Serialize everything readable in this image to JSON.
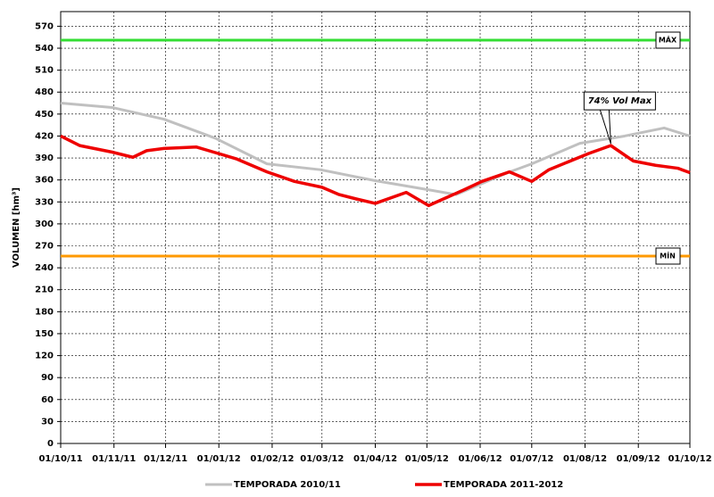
{
  "chart_data": {
    "type": "line",
    "y_label": "VOLUMEN [hm³]",
    "xlim": [
      0,
      366
    ],
    "xticks": [
      {
        "value": 0,
        "label": "01/10/11"
      },
      {
        "value": 31,
        "label": "01/11/11"
      },
      {
        "value": 61,
        "label": "01/12/11"
      },
      {
        "value": 92,
        "label": "01/01/12"
      },
      {
        "value": 123,
        "label": "01/02/12"
      },
      {
        "value": 152,
        "label": "01/03/12"
      },
      {
        "value": 183,
        "label": "01/04/12"
      },
      {
        "value": 213,
        "label": "01/05/12"
      },
      {
        "value": 244,
        "label": "01/06/12"
      },
      {
        "value": 274,
        "label": "01/07/12"
      },
      {
        "value": 305,
        "label": "01/08/12"
      },
      {
        "value": 336,
        "label": "01/09/12"
      },
      {
        "value": 366,
        "label": "01/10/12"
      }
    ],
    "ylim": [
      0,
      590
    ],
    "yticks": [
      0,
      30,
      60,
      90,
      120,
      150,
      180,
      210,
      240,
      270,
      300,
      330,
      360,
      390,
      420,
      450,
      480,
      510,
      540,
      570
    ],
    "grid": true,
    "series": [
      {
        "name": "TEMPORADA 2010/11",
        "color": "#c0c0c0",
        "x": [
          0,
          30,
          60,
          90,
          120,
          151,
          183,
          213,
          230,
          245,
          260,
          274,
          302,
          328,
          351,
          366
        ],
        "values": [
          465,
          459,
          443,
          417,
          382,
          374,
          359,
          347,
          340,
          355,
          370,
          382,
          410,
          420,
          431,
          420
        ]
      },
      {
        "name": "TEMPORADA 2011-2012",
        "color": "#ee0000",
        "x": [
          0,
          11,
          30,
          42,
          50,
          60,
          79,
          89,
          102,
          120,
          136,
          152,
          162,
          172,
          183,
          201,
          214,
          235,
          245,
          261,
          274,
          284,
          307,
          320,
          333,
          346,
          359,
          366
        ],
        "values": [
          420,
          407,
          398,
          391,
          400,
          403,
          405,
          398,
          389,
          371,
          358,
          350,
          340,
          334,
          328,
          343,
          325,
          347,
          358,
          371,
          358,
          374,
          396,
          407,
          386,
          380,
          376,
          370
        ]
      }
    ],
    "reference_lines": [
      {
        "name": "MÁX",
        "value": 551,
        "color": "#33dd33"
      },
      {
        "name": "MÍN",
        "value": 256,
        "color": "#ff9900"
      }
    ],
    "annotation": {
      "text": "74% Vol Max",
      "x": 320,
      "y": 407
    }
  }
}
